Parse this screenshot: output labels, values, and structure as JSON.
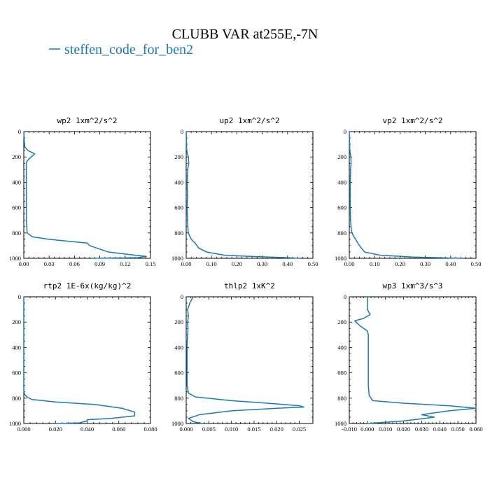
{
  "title": "CLUBB VAR at255E,-7N",
  "legend": {
    "label": "steffen_code_for_ben2",
    "color": "#1f77b4"
  },
  "chart_data": [
    {
      "type": "line",
      "title": "wp2  1xm^2/s^2",
      "xlim": [
        0,
        0.15
      ],
      "ylim": [
        1000,
        0
      ],
      "xticks": [
        "0.00",
        "0.03",
        "0.06",
        "0.09",
        "0.12",
        "0.15"
      ],
      "yticks": [
        "0",
        "200",
        "400",
        "600",
        "800",
        "1000"
      ],
      "series": [
        {
          "x": [
            0,
            0.001,
            0.005,
            0.013,
            0.007,
            0.003,
            0.003,
            0.003,
            0.003,
            0.003,
            0.003,
            0.004,
            0.01,
            0.03,
            0.06,
            0.075,
            0.078,
            0.1,
            0.125,
            0.145,
            0.135,
            0.08
          ],
          "y": [
            0,
            120,
            150,
            175,
            210,
            240,
            300,
            400,
            500,
            600,
            700,
            800,
            830,
            850,
            870,
            880,
            900,
            950,
            970,
            985,
            995,
            1000
          ]
        }
      ]
    },
    {
      "type": "line",
      "title": "up2  1xm^2/s^2",
      "xlim": [
        0,
        0.5
      ],
      "ylim": [
        1000,
        0
      ],
      "xticks": [
        "0.00",
        "0.10",
        "0.20",
        "0.30",
        "0.40",
        "0.50"
      ],
      "yticks": [
        "0",
        "200",
        "400",
        "600",
        "800",
        "1000"
      ],
      "series": [
        {
          "x": [
            0,
            0.002,
            0.008,
            0.01,
            0.006,
            0.004,
            0.005,
            0.004,
            0.005,
            0.008,
            0.02,
            0.035,
            0.05,
            0.08,
            0.15,
            0.25,
            0.4,
            0.45
          ],
          "y": [
            0,
            150,
            200,
            250,
            300,
            400,
            500,
            600,
            700,
            800,
            850,
            880,
            920,
            950,
            975,
            985,
            995,
            1000
          ]
        }
      ]
    },
    {
      "type": "line",
      "title": "vp2  1xm^2/s^2",
      "xlim": [
        0,
        0.5
      ],
      "ylim": [
        1000,
        0
      ],
      "xticks": [
        "0.00",
        "0.10",
        "0.20",
        "0.30",
        "0.40",
        "0.50"
      ],
      "yticks": [
        "0",
        "200",
        "400",
        "600",
        "800",
        "1000"
      ],
      "series": [
        {
          "x": [
            0,
            0.002,
            0.006,
            0.007,
            0.005,
            0.004,
            0.004,
            0.004,
            0.005,
            0.008,
            0.015,
            0.025,
            0.04,
            0.06,
            0.12,
            0.25,
            0.45
          ],
          "y": [
            0,
            150,
            200,
            250,
            300,
            400,
            500,
            600,
            700,
            780,
            820,
            850,
            900,
            950,
            975,
            990,
            1000
          ]
        }
      ]
    },
    {
      "type": "line",
      "title": "rtp2  1E-6x(kg/kg)^2",
      "xlim": [
        0,
        0.08
      ],
      "ylim": [
        1000,
        0
      ],
      "xticks": [
        "0.000",
        "0.020",
        "0.040",
        "0.060",
        "0.080"
      ],
      "yticks": [
        "0",
        "200",
        "400",
        "600",
        "800",
        "1000"
      ],
      "series": [
        {
          "x": [
            0,
            0,
            0,
            0,
            0,
            0.0005,
            0.002,
            0.005,
            0.02,
            0.045,
            0.062,
            0.07,
            0.07,
            0.055,
            0.04,
            0.04,
            0.035,
            0.02
          ],
          "y": [
            0,
            200,
            400,
            600,
            740,
            770,
            790,
            810,
            830,
            850,
            880,
            910,
            940,
            960,
            970,
            980,
            995,
            1000
          ]
        }
      ]
    },
    {
      "type": "line",
      "title": "thlp2  1xK^2",
      "xlim": [
        0,
        0.028
      ],
      "ylim": [
        1000,
        0
      ],
      "xticks": [
        "0.000",
        "0.005",
        "0.010",
        "0.015",
        "0.020",
        "0.025"
      ],
      "yticks": [
        "0",
        "200",
        "400",
        "600",
        "800",
        "1000"
      ],
      "series": [
        {
          "x": [
            0.0015,
            0.0008,
            0.0003,
            0.0005,
            0.0003,
            0.0004,
            0.0003,
            0.0002,
            0.0002,
            0.0002,
            0.0002,
            0.0005,
            0.002,
            0.01,
            0.02,
            0.025,
            0.026,
            0.02,
            0.01,
            0.003,
            0.0005,
            0.0015,
            0.0035
          ],
          "y": [
            0,
            50,
            100,
            150,
            200,
            250,
            300,
            400,
            500,
            600,
            700,
            760,
            790,
            820,
            845,
            860,
            870,
            880,
            900,
            930,
            960,
            985,
            1000
          ]
        }
      ]
    },
    {
      "type": "line",
      "title": "wp3  1xm^3/s^3",
      "xlim": [
        -0.01,
        0.06
      ],
      "ylim": [
        1000,
        0
      ],
      "xticks": [
        "-0.010",
        "0.000",
        "0.010",
        "0.020",
        "0.030",
        "0.040",
        "0.050",
        "0.060"
      ],
      "yticks": [
        "0",
        "200",
        "400",
        "600",
        "800",
        "1000"
      ],
      "series": [
        {
          "x": [
            0,
            0,
            0.0015,
            -0.002,
            -0.007,
            -0.004,
            0,
            0.0005,
            0.0005,
            0.0005,
            0.0005,
            0.0005,
            0.001,
            0.003,
            0.02,
            0.045,
            0.06,
            0.045,
            0.03,
            0.037,
            0.02,
            0
          ],
          "y": [
            0,
            100,
            140,
            170,
            190,
            230,
            270,
            300,
            400,
            500,
            600,
            700,
            780,
            820,
            840,
            860,
            880,
            900,
            930,
            950,
            980,
            1000
          ]
        }
      ]
    }
  ]
}
